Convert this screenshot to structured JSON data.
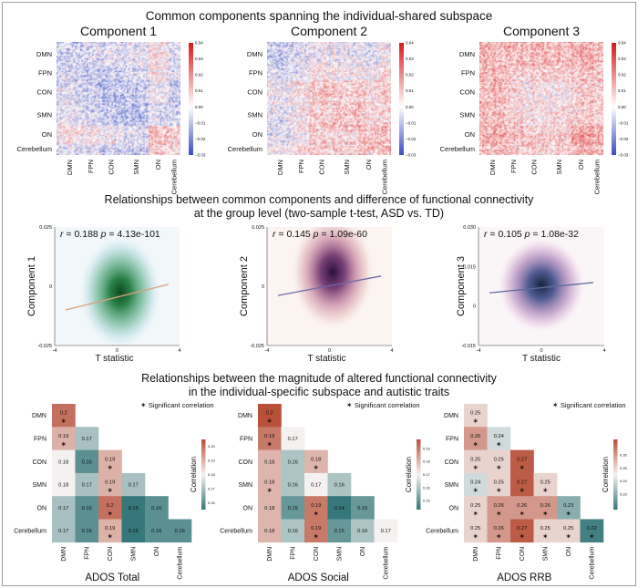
{
  "section_titles": {
    "top": "Common components spanning the individual-shared subspace",
    "middle_line1": "Relationships between common components and difference of functional connectivity",
    "middle_line2": "at the group level (two-sample t-test, ASD vs. TD)",
    "bottom_line1": "Relationships between the magnitude of altered functional connectivity",
    "bottom_line2": "in the individual-specific subspace and autistic traits"
  },
  "chart_data": [
    {
      "type": "heatmap",
      "title": "Component 1",
      "networks": [
        "DMN",
        "FPN",
        "CON",
        "SMN",
        "ON",
        "Cerebellum"
      ],
      "colorbar_ticks": [
        0.04,
        0.03,
        0.02,
        0.01,
        0.0,
        -0.01,
        -0.02,
        -0.03
      ],
      "colorbar_labels": [
        "0.04",
        "0.03",
        "0.02",
        "0.01",
        "0.00",
        "−0.01",
        "−0.02",
        "−0.03"
      ],
      "vrange": [
        -0.03,
        0.04
      ],
      "colormap": "bwr",
      "block_pattern": [
        [
          -0.008,
          -0.006,
          -0.004,
          -0.002,
          0.004,
          -0.004
        ],
        [
          -0.006,
          -0.01,
          -0.008,
          -0.006,
          0.002,
          -0.004
        ],
        [
          -0.004,
          -0.008,
          -0.01,
          -0.008,
          0.0,
          -0.006
        ],
        [
          -0.002,
          -0.006,
          -0.008,
          -0.01,
          -0.004,
          -0.006
        ],
        [
          0.004,
          0.002,
          0.0,
          -0.004,
          0.01,
          0.008
        ],
        [
          -0.004,
          -0.004,
          -0.006,
          -0.006,
          0.008,
          0.006
        ]
      ]
    },
    {
      "type": "heatmap",
      "title": "Component 2",
      "networks": [
        "DMN",
        "FPN",
        "CON",
        "SMN",
        "ON",
        "Cerebellum"
      ],
      "colorbar_ticks": [
        0.04,
        0.03,
        0.02,
        0.01,
        0.0,
        -0.01,
        -0.02,
        -0.03
      ],
      "colorbar_labels": [
        "0.04",
        "0.03",
        "0.02",
        "0.01",
        "0.00",
        "−0.01",
        "−0.02",
        "−0.03"
      ],
      "vrange": [
        -0.03,
        0.04
      ],
      "colormap": "bwr",
      "block_pattern": [
        [
          -0.006,
          -0.004,
          0.0,
          -0.002,
          -0.002,
          0.0
        ],
        [
          -0.004,
          -0.004,
          0.004,
          0.002,
          0.002,
          0.004
        ],
        [
          0.0,
          0.004,
          0.01,
          0.008,
          0.008,
          0.008
        ],
        [
          -0.002,
          0.002,
          0.008,
          0.01,
          0.008,
          0.006
        ],
        [
          -0.002,
          0.002,
          0.008,
          0.008,
          0.012,
          0.01
        ],
        [
          0.0,
          0.004,
          0.008,
          0.006,
          0.01,
          0.01
        ]
      ]
    },
    {
      "type": "heatmap",
      "title": "Component 3",
      "networks": [
        "DMN",
        "FPN",
        "CON",
        "SMN",
        "ON",
        "Cerebellum"
      ],
      "colorbar_ticks": [
        0.04,
        0.03,
        0.02,
        0.01,
        0.0,
        -0.01,
        -0.02,
        -0.03
      ],
      "colorbar_labels": [
        "0.04",
        "0.03",
        "0.02",
        "0.01",
        "0.00",
        "−0.01",
        "−0.02",
        "−0.03"
      ],
      "vrange": [
        -0.03,
        0.04
      ],
      "colormap": "bwr",
      "block_pattern": [
        [
          0.012,
          0.012,
          0.012,
          0.012,
          0.014,
          0.012
        ],
        [
          0.012,
          0.008,
          0.008,
          0.008,
          0.01,
          0.01
        ],
        [
          0.012,
          0.008,
          0.004,
          0.004,
          0.008,
          0.008
        ],
        [
          0.012,
          0.008,
          0.004,
          0.006,
          0.008,
          0.008
        ],
        [
          0.014,
          0.01,
          0.008,
          0.008,
          0.016,
          0.014
        ],
        [
          0.012,
          0.01,
          0.008,
          0.008,
          0.014,
          0.012
        ]
      ]
    },
    {
      "type": "scatter",
      "subtype": "kde-with-regression",
      "xlabel": "T statistic",
      "ylabel": "Component 1",
      "xlim": [
        -4,
        4
      ],
      "ylim": [
        -0.025,
        0.025
      ],
      "xticks": [
        -4,
        0,
        4
      ],
      "xtick_labels": [
        "-4",
        "0",
        "4"
      ],
      "yticks": [
        -0.025,
        0,
        0.025
      ],
      "ytick_labels": [
        "-0.025",
        "0",
        "0.025"
      ],
      "r_label": "r",
      "r_value": "= 0.188",
      "p_label": "p",
      "p_value": "= 4.13e-101",
      "density_center": [
        0.2,
        -0.007
      ],
      "density_color": "#0e4a22",
      "background": "#f2f7fa",
      "fit_line": {
        "x": [
          -3.3,
          3.3
        ],
        "y": [
          -0.01,
          0.0008
        ],
        "color": "#d9a27a"
      }
    },
    {
      "type": "scatter",
      "subtype": "kde-with-regression",
      "xlabel": "T statistic",
      "ylabel": "Component 2",
      "xlim": [
        -4,
        4
      ],
      "ylim": [
        -0.025,
        0.025
      ],
      "xticks": [
        -4,
        0,
        4
      ],
      "xtick_labels": [
        "-4",
        "0",
        "4"
      ],
      "yticks": [
        -0.025,
        0,
        0.025
      ],
      "ytick_labels": [
        "-0.025",
        "0",
        "0.025"
      ],
      "r_label": "r",
      "r_value": "= 0.145",
      "p_label": "p",
      "p_value": "= 1.09e-60",
      "density_center": [
        0.2,
        0.006
      ],
      "density_color": "#2a0f3c",
      "background": "#fbf4f0",
      "fit_line": {
        "x": [
          -3.3,
          3.3
        ],
        "y": [
          -0.0039,
          0.0043
        ],
        "color": "#6d6aa8"
      }
    },
    {
      "type": "scatter",
      "subtype": "kde-with-regression",
      "xlabel": "T statistic",
      "ylabel": "Component 3",
      "xlim": [
        -4,
        4
      ],
      "ylim": [
        -0.015,
        0.03
      ],
      "xticks": [
        -4,
        0,
        4
      ],
      "xtick_labels": [
        "-4",
        "0",
        "4"
      ],
      "yticks": [
        -0.015,
        0,
        0.015,
        0.03
      ],
      "ytick_labels": [
        "-0.015",
        "0",
        "0.015",
        "0.030"
      ],
      "r_label": "r",
      "r_value": "= 0.105",
      "p_label": "p",
      "p_value": "= 1.08e-32",
      "density_center": [
        0.0,
        0.008
      ],
      "density_color": "#13243d",
      "background": "#faf6f8",
      "fit_line": {
        "x": [
          -3.3,
          3.3
        ],
        "y": [
          0.005,
          0.0089
        ],
        "color": "#5f6a9c"
      }
    },
    {
      "type": "heatmap",
      "subtype": "lower-triangle",
      "title": "ADOS Total",
      "networks": [
        "DMN",
        "FPN",
        "CON",
        "SMN",
        "ON",
        "Cerebellum"
      ],
      "values": [
        [
          0.2
        ],
        [
          0.19,
          0.17
        ],
        [
          0.18,
          0.16,
          0.19
        ],
        [
          0.18,
          0.17,
          0.19,
          0.17
        ],
        [
          0.17,
          0.16,
          0.2,
          0.15,
          0.16
        ],
        [
          0.17,
          0.16,
          0.19,
          0.15,
          0.16,
          0.16
        ]
      ],
      "significant": [
        [
          1
        ],
        [
          1,
          0
        ],
        [
          0,
          0,
          1
        ],
        [
          0,
          0,
          1,
          0
        ],
        [
          0,
          0,
          1,
          0,
          0
        ],
        [
          0,
          0,
          1,
          0,
          0,
          0
        ]
      ],
      "colorbar_label": "Correlation",
      "colorbar_ticks": [
        0.2,
        0.19,
        0.18,
        0.17,
        0.16
      ],
      "vrange": [
        0.155,
        0.205
      ],
      "legend": "Significant correlation",
      "legend_marker": "✶"
    },
    {
      "type": "heatmap",
      "subtype": "lower-triangle",
      "title": "ADOS Social",
      "networks": [
        "DMN",
        "FPN",
        "CON",
        "SMN",
        "ON",
        "Cerebellum"
      ],
      "values": [
        [
          0.2
        ],
        [
          0.19,
          0.17
        ],
        [
          0.18,
          0.16,
          0.18
        ],
        [
          0.18,
          0.16,
          0.17,
          0.16
        ],
        [
          0.18,
          0.15,
          0.19,
          0.14,
          0.15
        ],
        [
          0.18,
          0.16,
          0.19,
          0.15,
          0.16,
          0.17
        ]
      ],
      "significant": [
        [
          1
        ],
        [
          1,
          0
        ],
        [
          0,
          0,
          1
        ],
        [
          1,
          0,
          0,
          0
        ],
        [
          0,
          0,
          1,
          0,
          0
        ],
        [
          0,
          0,
          1,
          0,
          0,
          0
        ]
      ],
      "colorbar_label": "Correlation",
      "colorbar_ticks": [
        0.19,
        0.18,
        0.17,
        0.16,
        0.15
      ],
      "vrange": [
        0.143,
        0.197
      ],
      "legend": "Significant correlation",
      "legend_marker": "✶"
    },
    {
      "type": "heatmap",
      "subtype": "lower-triangle",
      "title": "ADOS RRB",
      "networks": [
        "DMN",
        "FPN",
        "CON",
        "SMN",
        "ON",
        "Cerebellum"
      ],
      "values": [
        [
          0.25
        ],
        [
          0.26,
          0.24
        ],
        [
          0.25,
          0.25,
          0.27
        ],
        [
          0.24,
          0.25,
          0.27,
          0.25
        ],
        [
          0.25,
          0.26,
          0.26,
          0.26,
          0.23
        ],
        [
          0.25,
          0.26,
          0.27,
          0.25,
          0.25,
          0.22
        ]
      ],
      "significant": [
        [
          1
        ],
        [
          1,
          1
        ],
        [
          1,
          1,
          1
        ],
        [
          1,
          1,
          1,
          1
        ],
        [
          1,
          1,
          1,
          1,
          1
        ],
        [
          1,
          1,
          1,
          1,
          1,
          1
        ]
      ],
      "colorbar_label": "Correlation",
      "colorbar_ticks": [
        0.26,
        0.25,
        0.24,
        0.23
      ],
      "vrange": [
        0.218,
        0.272
      ],
      "legend": "Significant correlation",
      "legend_marker": "✶"
    }
  ],
  "colors": {
    "diverging_low": "#35777a",
    "diverging_mid": "#f4f1f0",
    "diverging_high": "#b8503a",
    "bwr_low": "#3b4cc0",
    "bwr_high": "#d7191c"
  }
}
